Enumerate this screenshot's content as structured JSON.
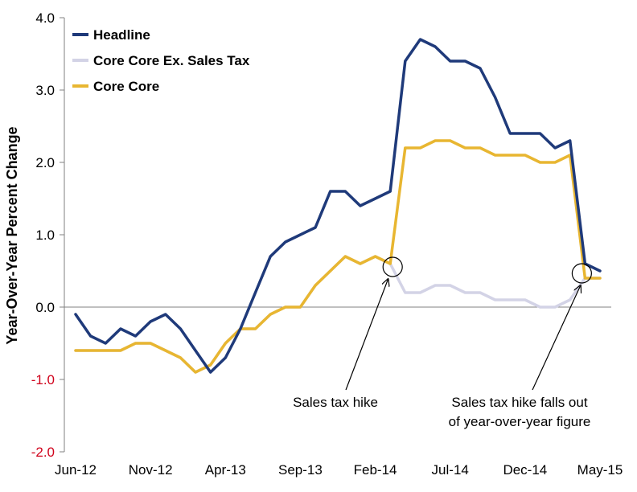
{
  "chart_data": {
    "type": "line",
    "xlabel": "",
    "ylabel": "Year-Over-Year Percent Change",
    "ylim": [
      -2.0,
      4.0
    ],
    "yticks": [
      "4.0",
      "3.0",
      "2.0",
      "1.0",
      "0.0",
      "-1.0",
      "-2.0"
    ],
    "x": [
      "Jun-12",
      "Jul-12",
      "Aug-12",
      "Sep-12",
      "Oct-12",
      "Nov-12",
      "Dec-12",
      "Jan-13",
      "Feb-13",
      "Mar-13",
      "Apr-13",
      "May-13",
      "Jun-13",
      "Jul-13",
      "Aug-13",
      "Sep-13",
      "Oct-13",
      "Nov-13",
      "Dec-13",
      "Jan-14",
      "Feb-14",
      "Mar-14",
      "Apr-14",
      "May-14",
      "Jun-14",
      "Jul-14",
      "Aug-14",
      "Sep-14",
      "Oct-14",
      "Nov-14",
      "Dec-14",
      "Jan-15",
      "Feb-15",
      "Mar-15",
      "Apr-15",
      "May-15"
    ],
    "xtick_labels": [
      "Jun-12",
      "Nov-12",
      "Apr-13",
      "Sep-13",
      "Feb-14",
      "Jul-14",
      "Dec-14",
      "May-15"
    ],
    "grid": false,
    "legend_position": "top-left",
    "series": [
      {
        "name": "Headline",
        "color": "#1f3a7a",
        "values": [
          -0.1,
          -0.4,
          -0.5,
          -0.3,
          -0.4,
          -0.2,
          -0.1,
          -0.3,
          -0.6,
          -0.9,
          -0.7,
          -0.3,
          0.2,
          0.7,
          0.9,
          1.0,
          1.1,
          1.6,
          1.6,
          1.4,
          1.5,
          1.6,
          3.4,
          3.7,
          3.6,
          3.4,
          3.4,
          3.3,
          2.9,
          2.4,
          2.4,
          2.4,
          2.2,
          2.3,
          0.6,
          0.5
        ]
      },
      {
        "name": "Core Core Ex. Sales Tax",
        "color": "#d3d3e6",
        "values": [
          -0.6,
          -0.6,
          -0.6,
          -0.6,
          -0.5,
          -0.5,
          -0.6,
          -0.7,
          -0.9,
          -0.8,
          -0.5,
          -0.3,
          -0.3,
          -0.1,
          0.0,
          0.0,
          0.3,
          0.5,
          0.7,
          0.6,
          0.7,
          0.6,
          0.2,
          0.2,
          0.3,
          0.3,
          0.2,
          0.2,
          0.1,
          0.1,
          0.1,
          0.0,
          0.0,
          0.1,
          0.4,
          0.4
        ]
      },
      {
        "name": "Core Core",
        "color": "#e8b631",
        "values": [
          -0.6,
          -0.6,
          -0.6,
          -0.6,
          -0.5,
          -0.5,
          -0.6,
          -0.7,
          -0.9,
          -0.8,
          -0.5,
          -0.3,
          -0.3,
          -0.1,
          0.0,
          0.0,
          0.3,
          0.5,
          0.7,
          0.6,
          0.7,
          0.6,
          2.2,
          2.2,
          2.3,
          2.3,
          2.2,
          2.2,
          2.1,
          2.1,
          2.1,
          2.0,
          2.0,
          2.1,
          0.4,
          0.4
        ]
      }
    ],
    "annotations": [
      {
        "lines": [
          "Sales tax hike"
        ],
        "x": "Mar-14",
        "y": 0.6
      },
      {
        "lines": [
          "Sales tax hike falls out",
          "of year-over-year figure"
        ],
        "x": "Apr-15",
        "y": 0.4
      }
    ]
  }
}
